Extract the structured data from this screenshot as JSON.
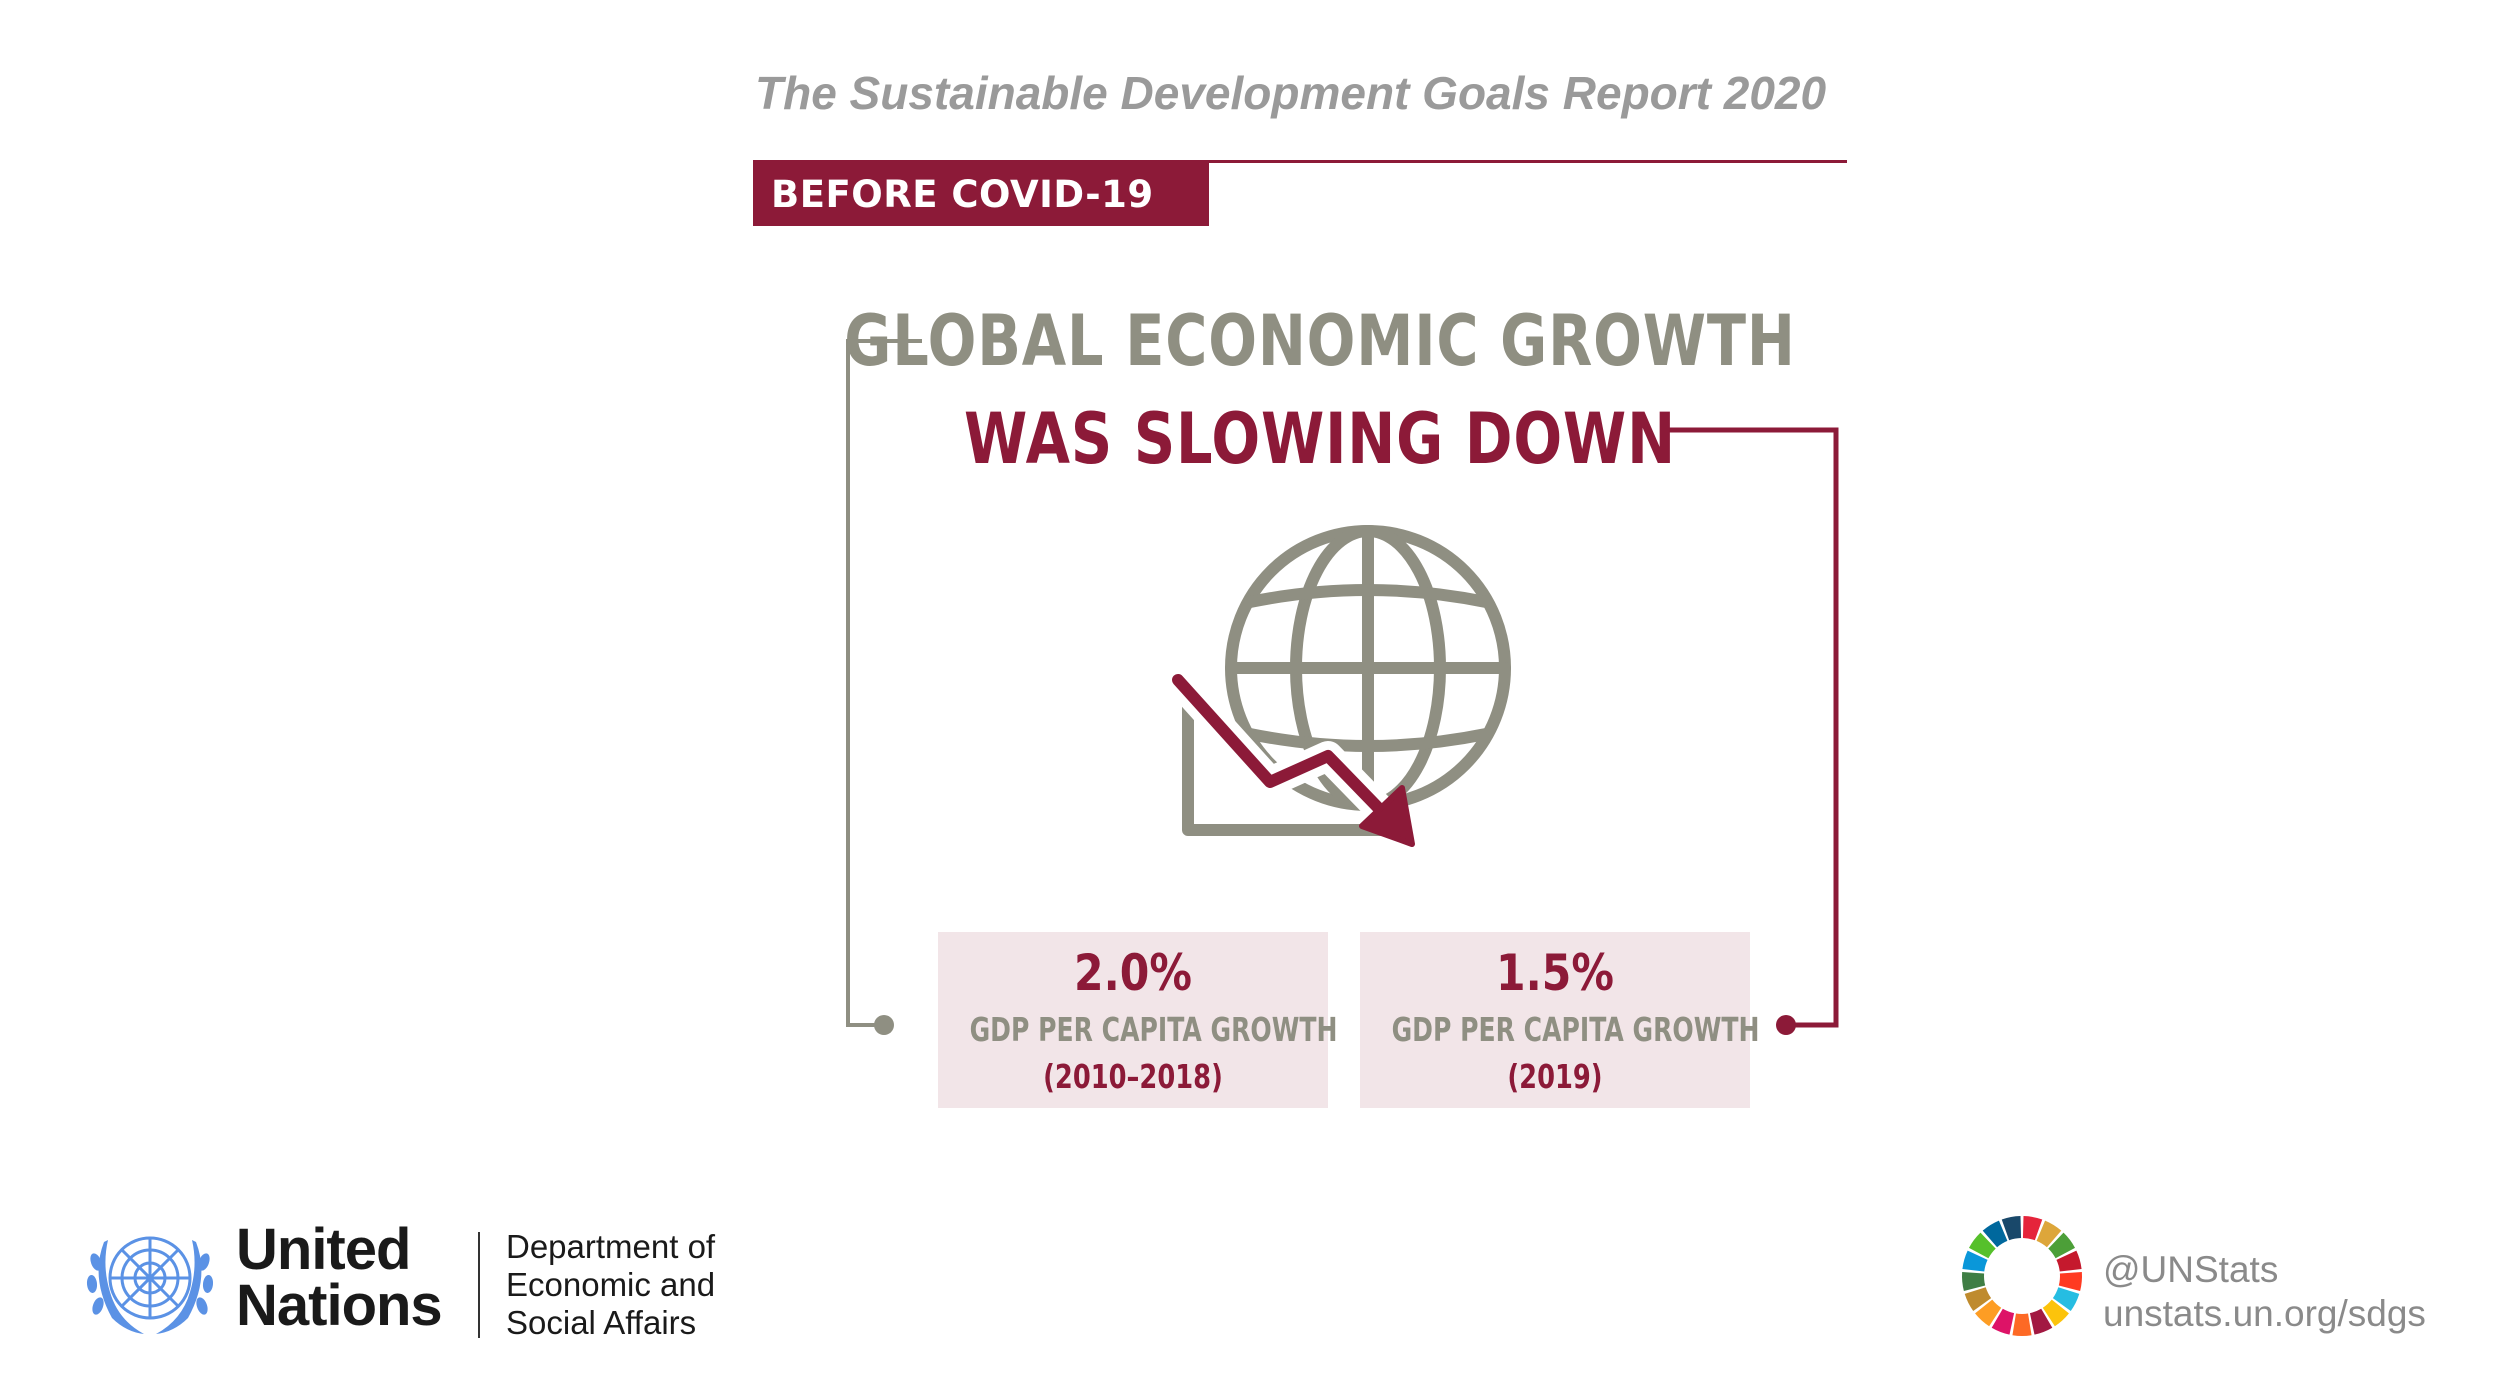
{
  "header": {
    "report_title": "The Sustainable Development Goals Report 2020",
    "section_label": "BEFORE COVID-19"
  },
  "headline": {
    "line1": "GLOBAL ECONOMIC GROWTH",
    "line2": "WAS SLOWING DOWN"
  },
  "stats": [
    {
      "value": "2.0%",
      "label": "GDP PER CAPITA GROWTH",
      "period": "(2010–2018)"
    },
    {
      "value": "1.5%",
      "label": "GDP PER CAPITA GROWTH",
      "period": "(2019)"
    }
  ],
  "footer": {
    "un_line1": "United",
    "un_line2": "Nations",
    "dept_line1": "Department of",
    "dept_line2": "Economic and",
    "dept_line3": "Social Affairs",
    "handle": "@UNStats",
    "url": "unstats.un.org/sdgs"
  },
  "icons": {
    "main": "globe-with-declining-trend-icon",
    "un_logo": "un-emblem-icon",
    "sdg_logo": "sdg-color-wheel-icon"
  },
  "colors": {
    "accent": "#8c1a38",
    "gray": "#8f8f82",
    "box_background": "#f2e5e8"
  }
}
